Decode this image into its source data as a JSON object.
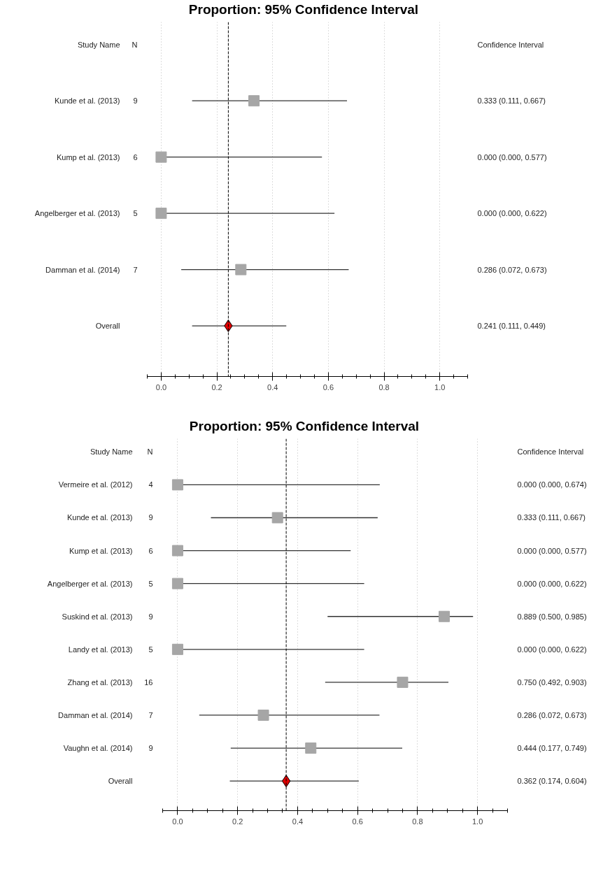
{
  "chart_data": [
    {
      "type": "scatter",
      "orientation": "horizontal",
      "title": "Proportion: 95% Confidence Interval",
      "annotations": [
        "Study Name",
        "N",
        "Confidence Interval"
      ],
      "categories": [
        "Kunde et al. (2013)",
        "Kump et al. (2013)",
        "Angelberger et al. (2013)",
        "Damman et al. (2014)",
        "Overall"
      ],
      "y2_categories": [
        "9",
        "6",
        "5",
        "7",
        null
      ],
      "marker": "square",
      "series": [
        {
          "color": "#a6a6a6",
          "values": [
            0.333,
            0.0,
            0.0,
            0.286,
            null
          ],
          "errors": [
            [
              0.111,
              0.667
            ],
            [
              0.0,
              0.577
            ],
            [
              0.0,
              0.622
            ],
            [
              0.072,
              0.673
            ],
            null
          ]
        },
        {
          "color": "#e00000",
          "marker": "diamond",
          "values": [
            null,
            null,
            null,
            null,
            0.241
          ],
          "errors": [
            null,
            null,
            null,
            null,
            [
              0.111,
              0.449
            ]
          ]
        }
      ],
      "value_labels": [
        "0.333 (0.111, 0.667)",
        "0.000 (0.000, 0.577)",
        "0.000 (0.000, 0.622)",
        "0.286 (0.072, 0.673)",
        "0.241 (0.111, 0.449)"
      ],
      "ref_lines": [
        {
          "axis": "x",
          "value": 0.241,
          "color": "#000000",
          "line_style": "dashed"
        }
      ],
      "xlim": [
        -0.05,
        1.1
      ],
      "xticks": [
        {
          "value": -0.05,
          "label": null
        },
        {
          "value": 0,
          "label": "0.0"
        },
        {
          "value": 0.05,
          "label": null
        },
        {
          "value": 0.1,
          "label": null
        },
        {
          "value": 0.15,
          "label": null
        },
        {
          "value": 0.2,
          "label": "0.2"
        },
        {
          "value": 0.25,
          "label": null
        },
        {
          "value": 0.3,
          "label": null
        },
        {
          "value": 0.35,
          "label": null
        },
        {
          "value": 0.4,
          "label": "0.4"
        },
        {
          "value": 0.45,
          "label": null
        },
        {
          "value": 0.5,
          "label": null
        },
        {
          "value": 0.55,
          "label": null
        },
        {
          "value": 0.6,
          "label": "0.6"
        },
        {
          "value": 0.65,
          "label": null
        },
        {
          "value": 0.7,
          "label": null
        },
        {
          "value": 0.75,
          "label": null
        },
        {
          "value": 0.8,
          "label": "0.8"
        },
        {
          "value": 0.85,
          "label": null
        },
        {
          "value": 0.9,
          "label": null
        },
        {
          "value": 0.95,
          "label": null
        },
        {
          "value": 1.0,
          "label": "1.0"
        },
        {
          "value": 1.05,
          "label": null
        },
        {
          "value": 1.1,
          "label": null
        }
      ],
      "grid": "x"
    },
    {
      "type": "scatter",
      "orientation": "horizontal",
      "title": "Proportion: 95% Confidence Interval",
      "annotations": [
        "Study Name",
        "N",
        "Confidence Interval"
      ],
      "categories": [
        "Vermeire et al. (2012)",
        "Kunde et al. (2013)",
        "Kump et al. (2013)",
        "Angelberger et al. (2013)",
        "Suskind et al. (2013)",
        "Landy et al. (2013)",
        "Zhang et al. (2013)",
        "Damman et al. (2014)",
        "Vaughn et al. (2014)",
        "Overall"
      ],
      "y2_categories": [
        "4",
        "9",
        "6",
        "5",
        "9",
        "5",
        "16",
        "7",
        "9",
        null
      ],
      "marker": "square",
      "series": [
        {
          "color": "#a6a6a6",
          "values": [
            0.0,
            0.333,
            0.0,
            0.0,
            0.889,
            0.0,
            0.75,
            0.286,
            0.444,
            null
          ],
          "errors": [
            [
              0.0,
              0.674
            ],
            [
              0.111,
              0.667
            ],
            [
              0.0,
              0.577
            ],
            [
              0.0,
              0.622
            ],
            [
              0.5,
              0.985
            ],
            [
              0.0,
              0.622
            ],
            [
              0.492,
              0.903
            ],
            [
              0.072,
              0.673
            ],
            [
              0.177,
              0.749
            ],
            null
          ]
        },
        {
          "color": "#e00000",
          "marker": "diamond",
          "values": [
            null,
            null,
            null,
            null,
            null,
            null,
            null,
            null,
            null,
            0.362
          ],
          "errors": [
            null,
            null,
            null,
            null,
            null,
            null,
            null,
            null,
            null,
            [
              0.174,
              0.604
            ]
          ]
        }
      ],
      "value_labels": [
        "0.000 (0.000, 0.674)",
        "0.333 (0.111, 0.667)",
        "0.000 (0.000, 0.577)",
        "0.000 (0.000, 0.622)",
        "0.889 (0.500, 0.985)",
        "0.000 (0.000, 0.622)",
        "0.750 (0.492, 0.903)",
        "0.286 (0.072, 0.673)",
        "0.444 (0.177, 0.749)",
        "0.362 (0.174, 0.604)"
      ],
      "ref_lines": [
        {
          "axis": "x",
          "value": 0.362,
          "color": "#000000",
          "line_style": "dashed"
        }
      ],
      "xlim": [
        -0.05,
        1.1
      ],
      "xticks": [
        {
          "value": -0.05,
          "label": null
        },
        {
          "value": 0,
          "label": "0.0"
        },
        {
          "value": 0.05,
          "label": null
        },
        {
          "value": 0.1,
          "label": null
        },
        {
          "value": 0.15,
          "label": null
        },
        {
          "value": 0.2,
          "label": "0.2"
        },
        {
          "value": 0.25,
          "label": null
        },
        {
          "value": 0.3,
          "label": null
        },
        {
          "value": 0.35,
          "label": null
        },
        {
          "value": 0.4,
          "label": "0.4"
        },
        {
          "value": 0.45,
          "label": null
        },
        {
          "value": 0.5,
          "label": null
        },
        {
          "value": 0.55,
          "label": null
        },
        {
          "value": 0.6,
          "label": "0.6"
        },
        {
          "value": 0.65,
          "label": null
        },
        {
          "value": 0.7,
          "label": null
        },
        {
          "value": 0.75,
          "label": null
        },
        {
          "value": 0.8,
          "label": "0.8"
        },
        {
          "value": 0.85,
          "label": null
        },
        {
          "value": 0.9,
          "label": null
        },
        {
          "value": 0.95,
          "label": null
        },
        {
          "value": 1.0,
          "label": "1.0"
        },
        {
          "value": 1.05,
          "label": null
        },
        {
          "value": 1.1,
          "label": null
        }
      ],
      "grid": "x"
    }
  ]
}
